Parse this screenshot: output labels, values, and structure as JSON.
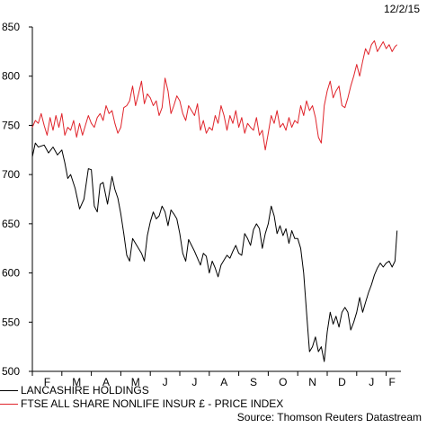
{
  "date_label": "12/2/15",
  "source": "Source: Thomson Reuters Datastream",
  "colors": {
    "lancashire": "#000000",
    "ftse": "#e0242b"
  },
  "chart_data": {
    "type": "line",
    "ylim": [
      500,
      850
    ],
    "yticks": [
      500,
      550,
      600,
      650,
      700,
      750,
      800,
      850
    ],
    "xlim": [
      0,
      12.5
    ],
    "months": [
      {
        "label": "F",
        "x": 0.5
      },
      {
        "label": "M",
        "x": 1.5
      },
      {
        "label": "A",
        "x": 2.5
      },
      {
        "label": "M",
        "x": 3.5
      },
      {
        "label": "J",
        "x": 4.5
      },
      {
        "label": "J",
        "x": 5.5
      },
      {
        "label": "A",
        "x": 6.5
      },
      {
        "label": "S",
        "x": 7.5
      },
      {
        "label": "O",
        "x": 8.5
      },
      {
        "label": "N",
        "x": 9.5
      },
      {
        "label": "D",
        "x": 10.5
      },
      {
        "label": "J",
        "x": 11.5
      },
      {
        "label": "F",
        "x": 12.2
      }
    ],
    "series": [
      {
        "name": "LANCASHIRE HOLDINGS",
        "color": "#000000",
        "x": [
          0,
          0.1,
          0.2,
          0.4,
          0.55,
          0.7,
          0.85,
          1.0,
          1.1,
          1.2,
          1.3,
          1.45,
          1.6,
          1.75,
          1.9,
          2.0,
          2.1,
          2.2,
          2.3,
          2.4,
          2.55,
          2.7,
          2.8,
          2.9,
          3.0,
          3.1,
          3.2,
          3.3,
          3.4,
          3.5,
          3.6,
          3.7,
          3.8,
          3.9,
          4.0,
          4.1,
          4.2,
          4.3,
          4.4,
          4.5,
          4.6,
          4.7,
          4.8,
          4.9,
          5.0,
          5.1,
          5.2,
          5.3,
          5.4,
          5.5,
          5.6,
          5.7,
          5.8,
          5.9,
          6.0,
          6.1,
          6.2,
          6.3,
          6.4,
          6.5,
          6.6,
          6.7,
          6.8,
          6.9,
          7.0,
          7.1,
          7.2,
          7.3,
          7.4,
          7.5,
          7.6,
          7.7,
          7.8,
          7.9,
          8.0,
          8.1,
          8.2,
          8.3,
          8.4,
          8.5,
          8.6,
          8.7,
          8.8,
          8.9,
          9.0,
          9.1,
          9.2,
          9.3,
          9.4,
          9.5,
          9.6,
          9.7,
          9.8,
          9.9,
          10.0,
          10.1,
          10.2,
          10.3,
          10.4,
          10.5,
          10.6,
          10.7,
          10.8,
          10.9,
          11.0,
          11.1,
          11.2,
          11.3,
          11.4,
          11.5,
          11.6,
          11.7,
          11.8,
          11.9,
          12.0,
          12.1,
          12.2,
          12.3,
          12.37
        ],
        "values": [
          718,
          732,
          728,
          730,
          722,
          728,
          720,
          725,
          712,
          696,
          700,
          686,
          665,
          675,
          706,
          705,
          668,
          662,
          690,
          692,
          670,
          698,
          685,
          676,
          660,
          640,
          618,
          612,
          635,
          630,
          625,
          620,
          612,
          638,
          652,
          662,
          655,
          658,
          668,
          662,
          648,
          664,
          660,
          655,
          640,
          620,
          612,
          634,
          628,
          622,
          615,
          608,
          620,
          617,
          600,
          612,
          605,
          596,
          608,
          613,
          618,
          615,
          622,
          628,
          620,
          618,
          640,
          635,
          628,
          644,
          650,
          645,
          625,
          640,
          650,
          668,
          658,
          640,
          648,
          638,
          645,
          630,
          643,
          635,
          635,
          625,
          600,
          560,
          520,
          525,
          535,
          520,
          525,
          510,
          540,
          560,
          548,
          556,
          545,
          560,
          565,
          560,
          542,
          550,
          560,
          575,
          560,
          570,
          580,
          588,
          598,
          605,
          610,
          606,
          610,
          612,
          606,
          612,
          643
        ]
      },
      {
        "name": "FTSE ALL SHARE NONLIFE INSUR £ - PRICE INDEX",
        "color": "#e0242b",
        "x": [
          0,
          0.1,
          0.2,
          0.3,
          0.4,
          0.5,
          0.6,
          0.7,
          0.8,
          0.9,
          1.0,
          1.1,
          1.2,
          1.3,
          1.4,
          1.5,
          1.6,
          1.7,
          1.8,
          1.9,
          2.0,
          2.1,
          2.2,
          2.3,
          2.4,
          2.5,
          2.6,
          2.7,
          2.8,
          2.9,
          3.0,
          3.1,
          3.2,
          3.3,
          3.4,
          3.5,
          3.6,
          3.7,
          3.8,
          3.9,
          4.0,
          4.1,
          4.2,
          4.3,
          4.4,
          4.5,
          4.6,
          4.7,
          4.8,
          4.9,
          5.0,
          5.1,
          5.2,
          5.3,
          5.4,
          5.5,
          5.6,
          5.7,
          5.8,
          5.9,
          6.0,
          6.1,
          6.2,
          6.3,
          6.4,
          6.5,
          6.6,
          6.7,
          6.8,
          6.9,
          7.0,
          7.1,
          7.2,
          7.3,
          7.4,
          7.5,
          7.6,
          7.7,
          7.8,
          7.9,
          8.0,
          8.1,
          8.2,
          8.3,
          8.4,
          8.5,
          8.6,
          8.7,
          8.8,
          8.9,
          9.0,
          9.1,
          9.2,
          9.3,
          9.4,
          9.5,
          9.6,
          9.7,
          9.8,
          9.9,
          10.0,
          10.1,
          10.2,
          10.3,
          10.4,
          10.5,
          10.6,
          10.7,
          10.8,
          10.9,
          11.0,
          11.1,
          11.2,
          11.3,
          11.4,
          11.5,
          11.6,
          11.7,
          11.8,
          11.9,
          12.0,
          12.1,
          12.2,
          12.3,
          12.37
        ],
        "values": [
          748,
          755,
          752,
          762,
          750,
          740,
          758,
          745,
          760,
          748,
          762,
          740,
          748,
          745,
          755,
          738,
          752,
          740,
          750,
          760,
          752,
          748,
          758,
          762,
          755,
          770,
          762,
          765,
          752,
          742,
          748,
          768,
          770,
          775,
          790,
          770,
          782,
          795,
          772,
          782,
          778,
          770,
          775,
          760,
          768,
          798,
          785,
          762,
          770,
          780,
          775,
          762,
          755,
          770,
          765,
          760,
          772,
          745,
          755,
          742,
          748,
          745,
          760,
          752,
          770,
          760,
          745,
          760,
          752,
          765,
          748,
          758,
          742,
          752,
          748,
          745,
          758,
          740,
          745,
          725,
          742,
          760,
          752,
          765,
          748,
          752,
          745,
          758,
          748,
          755,
          752,
          770,
          760,
          775,
          765,
          770,
          758,
          738,
          732,
          770,
          785,
          795,
          778,
          785,
          790,
          770,
          768,
          778,
          790,
          800,
          812,
          800,
          815,
          828,
          822,
          832,
          836,
          825,
          830,
          835,
          828,
          832,
          825,
          830,
          832
        ]
      }
    ]
  }
}
